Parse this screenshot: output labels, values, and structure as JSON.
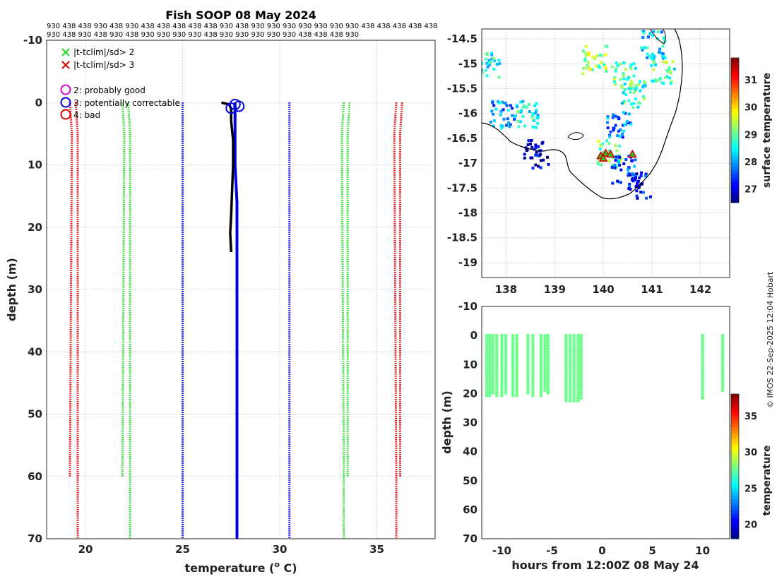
{
  "title": "Fish SOOP 08 May 2024",
  "platform_ids": {
    "row1": "930 438 438 930 438 930 438 438 438 438 438 930 438 930 930 930 930 930 930 930 438 438 438 438 438",
    "row2": "930 438 930 438 930 438 930 930 930 930 438 930 930 930 930 930 438 438 438 930"
  },
  "credit": "© IMOS 22-Sep-2025 12:04 Hobart",
  "colors": {
    "red": "#dd0000",
    "green": "#22dd22",
    "blue": "#0000dd",
    "black": "#000000",
    "magenta": "#dd00dd"
  },
  "legend": {
    "cross_items": [
      {
        "label": "|t-tclim|/sd> 2",
        "color": "#22dd22",
        "icon": "x-icon"
      },
      {
        "label": "|t-tclim|/sd> 3",
        "color": "#dd0000",
        "icon": "x-icon"
      }
    ],
    "circle_items": [
      {
        "label": "2: probably good",
        "color": "#dd00dd",
        "icon": "circle-icon"
      },
      {
        "label": "3: potentially correctable",
        "color": "#0000dd",
        "icon": "circle-icon"
      },
      {
        "label": "4: bad",
        "color": "#dd0000",
        "icon": "circle-icon"
      }
    ]
  },
  "chart_data": [
    {
      "id": "profile",
      "type": "line",
      "title": "Fish SOOP 08 May 2024",
      "xlabel": "temperature (° C)",
      "xlabel_main": "temperature (",
      "xlabel_sup": "o",
      "xlabel_end": " C)",
      "ylabel": "depth (m)",
      "xlim": [
        18,
        38
      ],
      "ylim": [
        -10,
        70
      ],
      "y_reversed": true,
      "grid": true,
      "xticks": [
        20,
        25,
        30,
        35
      ],
      "xtick_labels": [
        "20",
        "25",
        "30",
        "35"
      ],
      "yticks": [
        -10,
        0,
        10,
        20,
        30,
        40,
        50,
        60,
        70
      ],
      "ytick_labels": [
        "-10",
        "0",
        "10",
        "20",
        "30",
        "40",
        "50",
        "60",
        "70"
      ],
      "climatology_bounds": [
        {
          "name": "clim -3sd a",
          "color": "#dd0000",
          "style": "dotted",
          "depth": [
            0,
            5,
            60,
            70
          ],
          "temp": [
            19.5,
            19.6,
            19.6,
            19.6
          ]
        },
        {
          "name": "clim -3sd b",
          "color": "#dd0000",
          "style": "dotted",
          "depth": [
            0,
            5,
            60
          ],
          "temp": [
            19.2,
            19.3,
            19.2
          ]
        },
        {
          "name": "clim -2sd",
          "color": "#22dd22",
          "style": "dotted",
          "depth": [
            0,
            5,
            60,
            70
          ],
          "temp": [
            22.2,
            22.3,
            22.3,
            22.3
          ]
        },
        {
          "name": "clim -2sd b",
          "color": "#22dd22",
          "style": "dotted",
          "depth": [
            0,
            5,
            60
          ],
          "temp": [
            21.9,
            22.0,
            21.9
          ]
        },
        {
          "name": "clim low",
          "color": "#0000dd",
          "style": "dotted",
          "depth": [
            0,
            70
          ],
          "temp": [
            25.0,
            25.0
          ]
        },
        {
          "name": "clim high",
          "color": "#0000dd",
          "style": "dotted",
          "depth": [
            0,
            70
          ],
          "temp": [
            30.5,
            30.5
          ]
        },
        {
          "name": "clim +2sd",
          "color": "#22dd22",
          "style": "dotted",
          "depth": [
            0,
            5,
            60,
            70
          ],
          "temp": [
            33.3,
            33.2,
            33.3,
            33.3
          ]
        },
        {
          "name": "clim +2sd b",
          "color": "#22dd22",
          "style": "dotted",
          "depth": [
            0,
            5,
            60
          ],
          "temp": [
            33.6,
            33.5,
            33.5
          ]
        },
        {
          "name": "clim +3sd",
          "color": "#dd0000",
          "style": "dotted",
          "depth": [
            0,
            5,
            60,
            70
          ],
          "temp": [
            36.0,
            35.9,
            36.0,
            36.0
          ]
        },
        {
          "name": "clim +3sd b",
          "color": "#dd0000",
          "style": "dotted",
          "depth": [
            0,
            5,
            60
          ],
          "temp": [
            36.3,
            36.2,
            36.2
          ]
        }
      ],
      "profiles": [
        {
          "name": "flagged profile (blue)",
          "color": "#0000dd",
          "depth": [
            0,
            2,
            5,
            10,
            16,
            20,
            30,
            50,
            60,
            70
          ],
          "temp": [
            27.7,
            27.7,
            27.7,
            27.7,
            27.8,
            27.8,
            27.8,
            27.8,
            27.8,
            27.8
          ]
        },
        {
          "name": "observed profile (black)",
          "color": "#000000",
          "depth": [
            0,
            0.3,
            1,
            3,
            6,
            10,
            14,
            18,
            21,
            24
          ],
          "temp": [
            27.0,
            27.4,
            27.5,
            27.5,
            27.6,
            27.6,
            27.55,
            27.5,
            27.45,
            27.5
          ]
        }
      ],
      "flag_circles": [
        {
          "color": "#0000dd",
          "depth": 0.3,
          "temp": 27.7
        },
        {
          "color": "#0000dd",
          "depth": 0.9,
          "temp": 27.5
        },
        {
          "color": "#0000dd",
          "depth": 0.6,
          "temp": 27.9
        }
      ]
    },
    {
      "id": "map",
      "type": "heatmap",
      "xlim": [
        137.5,
        142.6
      ],
      "ylim": [
        -19.3,
        -14.3
      ],
      "grid": true,
      "xticks": [
        138,
        139,
        140,
        141,
        142
      ],
      "xtick_labels": [
        "138",
        "139",
        "140",
        "141",
        "142"
      ],
      "yticks": [
        -14.5,
        -15,
        -15.5,
        -16,
        -16.5,
        -17,
        -17.5,
        -18,
        -18.5,
        -19
      ],
      "ytick_labels": [
        "-14.5",
        "-15",
        "-15.5",
        "-16",
        "-16.5",
        "-17",
        "-17.5",
        "-18",
        "-18.5",
        "-19"
      ],
      "colorbar": {
        "label": "surface temperature",
        "range": [
          26.5,
          31.8
        ],
        "ticks": [
          27,
          28,
          29,
          30,
          31
        ],
        "tick_labels": [
          "27",
          "28",
          "29",
          "30",
          "31"
        ]
      },
      "sst_patches": [
        {
          "lon": 137.6,
          "lat": -15.0,
          "temp": 28.5
        },
        {
          "lon": 137.9,
          "lat": -16.0,
          "temp": 28.0
        },
        {
          "lon": 138.4,
          "lat": -16.0,
          "temp": 28.6
        },
        {
          "lon": 138.6,
          "lat": -16.8,
          "temp": 26.9
        },
        {
          "lon": 139.8,
          "lat": -14.9,
          "temp": 29.3
        },
        {
          "lon": 140.4,
          "lat": -15.2,
          "temp": 29.0
        },
        {
          "lon": 140.6,
          "lat": -15.6,
          "temp": 28.7
        },
        {
          "lon": 140.3,
          "lat": -16.2,
          "temp": 27.8
        },
        {
          "lon": 141.0,
          "lat": -14.6,
          "temp": 28.3
        },
        {
          "lon": 141.2,
          "lat": -15.1,
          "temp": 28.9
        },
        {
          "lon": 140.1,
          "lat": -16.8,
          "temp": 29.1
        },
        {
          "lon": 140.4,
          "lat": -17.1,
          "temp": 27.6
        },
        {
          "lon": 140.7,
          "lat": -17.4,
          "temp": 27.2
        }
      ],
      "stations": [
        {
          "lon": 139.95,
          "lat": -16.85
        },
        {
          "lon": 140.05,
          "lat": -16.8
        },
        {
          "lon": 140.15,
          "lat": -16.82
        },
        {
          "lon": 140.0,
          "lat": -16.9
        },
        {
          "lon": 140.6,
          "lat": -16.82
        }
      ]
    },
    {
      "id": "timeseries",
      "type": "scatter",
      "xlabel": "hours from 12:00Z 08 May 24",
      "ylabel": "depth (m)",
      "xlim": [
        -12,
        12.7
      ],
      "ylim": [
        -10,
        70
      ],
      "y_reversed": true,
      "grid": false,
      "xticks": [
        -10,
        -5,
        0,
        5,
        10
      ],
      "xtick_labels": [
        "-10",
        "-5",
        "0",
        "5",
        "10"
      ],
      "yticks": [
        -10,
        0,
        10,
        20,
        30,
        40,
        50,
        60,
        70
      ],
      "ytick_labels": [
        "-10",
        "0",
        "10",
        "20",
        "30",
        "40",
        "50",
        "60",
        "70"
      ],
      "colorbar": {
        "label": "temperature",
        "range": [
          18,
          38
        ],
        "ticks": [
          20,
          25,
          30,
          35
        ],
        "tick_labels": [
          "20",
          "25",
          "30",
          "35"
        ]
      },
      "casts": [
        {
          "hour": -11.5,
          "depth_max": 21,
          "temp": 27.7
        },
        {
          "hour": -11.2,
          "depth_max": 21,
          "temp": 27.7
        },
        {
          "hour": -10.9,
          "depth_max": 20,
          "temp": 27.7
        },
        {
          "hour": -10.5,
          "depth_max": 21,
          "temp": 27.7
        },
        {
          "hour": -10.0,
          "depth_max": 21,
          "temp": 27.7
        },
        {
          "hour": -9.6,
          "depth_max": 20,
          "temp": 27.7
        },
        {
          "hour": -8.9,
          "depth_max": 21,
          "temp": 27.7
        },
        {
          "hour": -8.5,
          "depth_max": 21,
          "temp": 27.7
        },
        {
          "hour": -7.4,
          "depth_max": 20,
          "temp": 27.7
        },
        {
          "hour": -6.9,
          "depth_max": 21,
          "temp": 27.7
        },
        {
          "hour": -6.1,
          "depth_max": 21,
          "temp": 27.7
        },
        {
          "hour": -5.7,
          "depth_max": 19,
          "temp": 27.7
        },
        {
          "hour": -5.4,
          "depth_max": 20,
          "temp": 27.7
        },
        {
          "hour": -3.6,
          "depth_max": 23,
          "temp": 27.7
        },
        {
          "hour": -3.2,
          "depth_max": 23,
          "temp": 27.7
        },
        {
          "hour": -2.8,
          "depth_max": 23,
          "temp": 27.7
        },
        {
          "hour": -2.4,
          "depth_max": 23,
          "temp": 27.7
        },
        {
          "hour": -2.1,
          "depth_max": 22,
          "temp": 27.7
        },
        {
          "hour": 10.0,
          "depth_max": 22,
          "temp": 27.7
        },
        {
          "hour": 12.0,
          "depth_max": 19,
          "temp": 27.7
        }
      ]
    }
  ]
}
